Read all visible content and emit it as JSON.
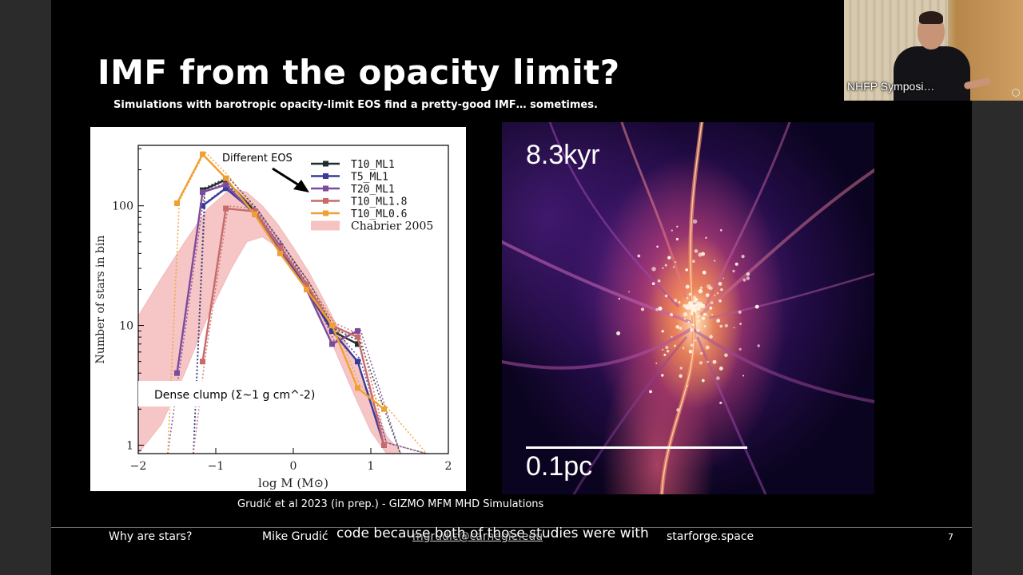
{
  "slide": {
    "title": "IMF from the opacity limit?",
    "subtitle": "Simulations with barotropic opacity-limit EOS find a pretty-good IMF… sometimes.",
    "credit": "Grudić et al 2023 (in prep.) - GIZMO MFM MHD Simulations",
    "page_number": "7"
  },
  "footer": {
    "left": "Why are stars?",
    "author": "Mike Grudić",
    "link": "mgrudic@carnegie.edu",
    "site": "starforge.space"
  },
  "caption": "code because both of those studies were with",
  "simulation": {
    "time_label": "8.3kyr",
    "scale_label": "0.1pc"
  },
  "webcam": {
    "label": "NHFP Symposi…",
    "icon": "microphone-icon"
  },
  "chart_data": {
    "type": "line",
    "xlabel": "log M (M⊙)",
    "ylabel": "Number of stars in bin",
    "xlim": [
      -2,
      2
    ],
    "ylim": [
      0.85,
      320
    ],
    "yscale": "log",
    "x_ticks": [
      "−2",
      "−1",
      "0",
      "1",
      "2"
    ],
    "y_ticks": [
      "1",
      "10",
      "100"
    ],
    "annotation_eos": "Different EOS",
    "annotation_clump": "Dense clump (Σ~1 g cm^-2)",
    "legend_position": "top-right",
    "series": [
      {
        "name": "T10_ML1",
        "color": "#1f2e2a",
        "x": [
          -1.17,
          -0.87,
          -0.5,
          -0.17,
          0.17,
          0.5,
          0.83
        ],
        "y": [
          135,
          165,
          90,
          45,
          22,
          9,
          7
        ]
      },
      {
        "name": "T5_ML1",
        "color": "#3b3a9a",
        "x": [
          -1.17,
          -0.87,
          -0.5,
          -0.17,
          0.17,
          0.5,
          0.83,
          1.17
        ],
        "y": [
          100,
          140,
          88,
          46,
          20,
          9,
          5,
          1
        ]
      },
      {
        "name": "T20_ML1",
        "color": "#7d4b9b",
        "x": [
          -1.5,
          -1.17,
          -0.87,
          -0.5,
          -0.17,
          0.17,
          0.5,
          0.83
        ],
        "y": [
          4,
          130,
          150,
          85,
          42,
          20,
          7,
          9
        ]
      },
      {
        "name": "T10_ML1.8",
        "color": "#c86a6a",
        "x": [
          -1.17,
          -0.87,
          -0.5,
          -0.17,
          0.17,
          0.5,
          0.83,
          1.17
        ],
        "y": [
          5,
          95,
          90,
          45,
          22,
          10,
          8,
          1
        ]
      },
      {
        "name": "T10_ML0.6",
        "color": "#f0a032",
        "x": [
          -1.5,
          -1.17,
          -0.87,
          -0.5,
          -0.17,
          0.17,
          0.5,
          0.83,
          1.17
        ],
        "y": [
          105,
          270,
          170,
          85,
          40,
          20,
          10,
          3,
          2
        ]
      }
    ],
    "chabrier_band": {
      "name": "Chabrier 2005",
      "color": "#f4b4b4",
      "x": [
        -2,
        -1.7,
        -1.4,
        -1.1,
        -0.8,
        -0.6,
        -0.4,
        -0.2,
        0,
        0.2,
        0.4,
        0.6,
        0.8,
        1.0,
        1.2,
        1.4
      ],
      "lower": [
        0.8,
        1.5,
        4,
        12,
        30,
        50,
        55,
        45,
        30,
        18,
        10,
        5,
        2.5,
        1.3,
        0.85,
        0.85
      ],
      "upper": [
        12,
        25,
        50,
        95,
        140,
        130,
        100,
        70,
        45,
        28,
        16,
        9,
        5,
        2.5,
        1.2,
        0.85
      ]
    }
  }
}
